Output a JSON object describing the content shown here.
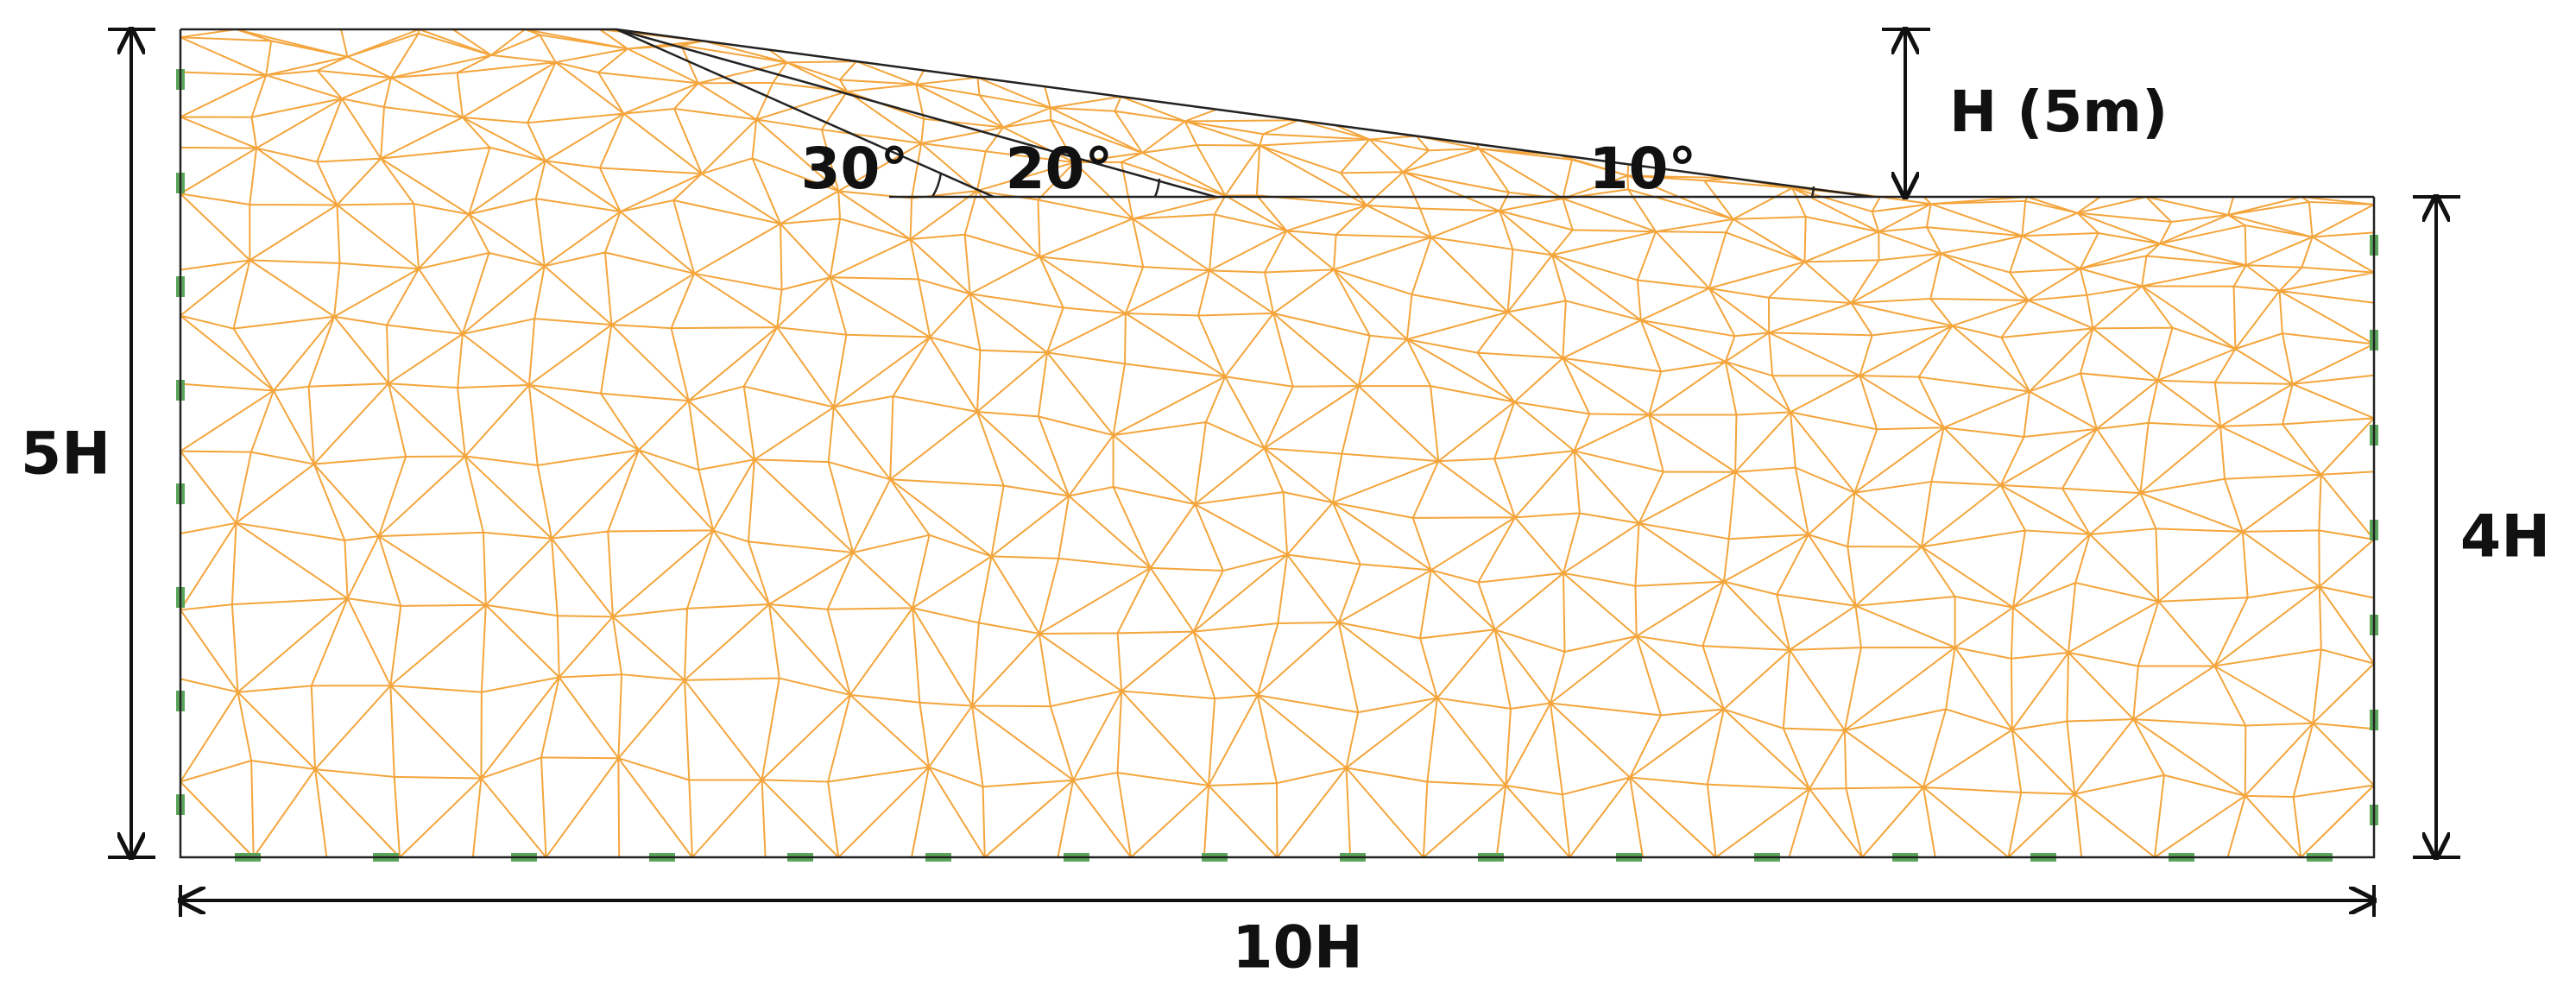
{
  "labels": {
    "height": "H (5m)",
    "left_height": "5H",
    "right_height": "4H",
    "width": "10H",
    "angle_30": "30°",
    "angle_20": "20°",
    "angle_10": "10°"
  }
}
